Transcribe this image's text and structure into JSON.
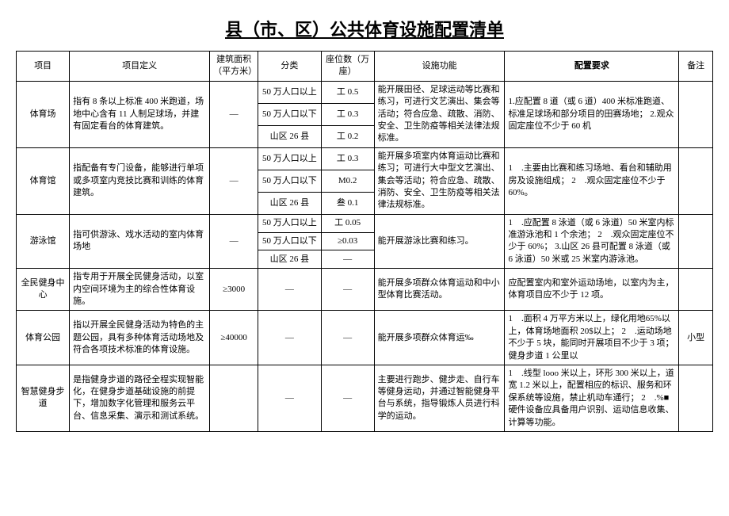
{
  "title": "县（市、区）公共体育设施配置清单",
  "headers": {
    "proj": "项目",
    "def": "项目定义",
    "area": "建筑面积（平方米）",
    "cat": "分类",
    "seat": "座位数（万座）",
    "func": "设施功能",
    "req": "配置要求",
    "note": "备注"
  },
  "rows": {
    "stadium": {
      "name": "体育场",
      "def": "指有 8 条以上标准 400 米跑道，场地中心含有 11 人制足球场，并建有固定看台的体育建筑。",
      "area": "—",
      "cats": [
        "50 万人口以上",
        "50 万人口以下",
        "山区 26 县"
      ],
      "seats": [
        "工 0.5",
        "工 0.3",
        "工 0.2"
      ],
      "func": "能开展田径、足球运动等比赛和练习，可进行文艺演出、集会等活动；符合应急、疏散、消防、安全、卫生防疫等相关法律法规标准。",
      "req": "1.应配置 8 道（或 6 道）400 米标准跑道、标准足球场和部分项目的田赛场地；\n2.观众固定座位不少于 60 机"
    },
    "gym": {
      "name": "体育馆",
      "def": "指配备有专门设备，能够进行单项或多项室内竞技比赛和训练的体育建筑。",
      "area": "—",
      "cats": [
        "50 万人口以上",
        "50 万人口以下",
        "山区 26 县"
      ],
      "seats": [
        "工 0.3",
        "M0.2",
        "叁 0.1"
      ],
      "func": "能开展多项室内体育运动比赛和练习；可进行大中型文艺演出、集会等活动；符合应急、疏散、消防、安全、卫生防疫等相关法律法规标准。",
      "req": "1　.主要由比赛和练习场地、看台和辅助用房及设施组成；\n2　.观众固定座位不少于 60%。"
    },
    "pool": {
      "name": "游泳馆",
      "def": "指可供游泳、戏水活动的室内体育场地",
      "area": "—",
      "cats": [
        "50 万人口以上",
        "50 万人口以下",
        "山区 26 县"
      ],
      "seats": [
        "工 0.05",
        "≥0.03",
        "—"
      ],
      "func": "能开展游泳比赛和练习。",
      "req": "1　.应配置 8 泳道（或 6 泳道）50 米室内标准游泳池和 1 个余池；\n2　.观众固定座位不少于 60%；\n3.山区 26 县可配置 8 泳道（或 6 泳道）50 米或 25 米室内游泳池。"
    },
    "fitness": {
      "name": "全民健身中心",
      "def": "指专用于开展全民健身活动，以室内空间环境为主的综合性体育设施。",
      "area": "≥3000",
      "cat": "—",
      "seat": "—",
      "func": "能开展多项群众体育运动和中小型体育比赛活动。",
      "req": "应配置室内和室外运动场地，以室内为主，体育项目应不少于 12 项。"
    },
    "park": {
      "name": "体育公园",
      "def": "指以开展全民健身活动为特色的主题公园，具有多种体育活动场地及符合各项技术标准的体育设施。",
      "area": "≥40000",
      "cat": "—",
      "seat": "—",
      "func": "能开展多项群众体育运‰",
      "req": "1　.面积 4 万平方米以上，绿化用地65%以上，体育场地面积 20$以上；\n2　.运动场地不少于 5 块，能同时开展项目不少于 3 项；健身步道 1 公里以",
      "note": "小型"
    },
    "trail": {
      "name": "智慧健身步道",
      "def": "是指健身步道的路径全程实现智能化，在健身步道基础设施的前提下，增加数字化管理和服务云平台、信息采集、演示和测试系统。",
      "area": "",
      "cat": "—",
      "seat": "—",
      "func": "主要进行跑步、健步走、自行车等健身运动，并通过智能健身平台与系统，指导锻炼人员进行科学的运动。",
      "req": "1　.线型 looo 米以上，环形 300 米以上，道宽 1.2 米以上，配置相应的标识、服务和环保系统等设施，禁止机动车通行；\n2　.%■硬件设备应具备用户识别、运动信息收集、计算等功能。"
    }
  }
}
